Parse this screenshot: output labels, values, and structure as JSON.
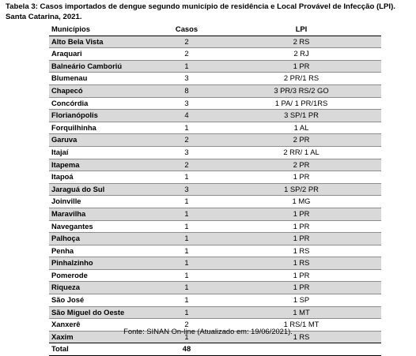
{
  "caption": "Tabela 3: Casos importados de dengue segundo município de residência e Local Provável de Infecção (LPI). Santa Catarina, 2021.",
  "table": {
    "headers": [
      "Municípios",
      "Casos",
      "LPI"
    ],
    "rows": [
      {
        "mun": "Alto Bela Vista",
        "casos": "2",
        "lpi": "2 RS"
      },
      {
        "mun": "Araquari",
        "casos": "2",
        "lpi": "2 RJ"
      },
      {
        "mun": "Balneário Camboriú",
        "casos": "1",
        "lpi": "1 PR"
      },
      {
        "mun": "Blumenau",
        "casos": "3",
        "lpi": "2 PR/1 RS"
      },
      {
        "mun": "Chapecó",
        "casos": "8",
        "lpi": "3 PR/3 RS/2 GO"
      },
      {
        "mun": "Concórdia",
        "casos": "3",
        "lpi": "1 PA/ 1 PR/1RS"
      },
      {
        "mun": "Florianópolis",
        "casos": "4",
        "lpi": "3 SP/1 PR"
      },
      {
        "mun": "Forquilhinha",
        "casos": "1",
        "lpi": "1 AL"
      },
      {
        "mun": "Garuva",
        "casos": "2",
        "lpi": "2 PR"
      },
      {
        "mun": "Itajaí",
        "casos": "3",
        "lpi": "2 RR/ 1 AL"
      },
      {
        "mun": "Itapema",
        "casos": "2",
        "lpi": "2 PR"
      },
      {
        "mun": "Itapoá",
        "casos": "1",
        "lpi": "1 PR"
      },
      {
        "mun": "Jaraguá do Sul",
        "casos": "3",
        "lpi": "1 SP/2 PR"
      },
      {
        "mun": "Joinville",
        "casos": "1",
        "lpi": "1 MG"
      },
      {
        "mun": "Maravilha",
        "casos": "1",
        "lpi": "1 PR"
      },
      {
        "mun": "Navegantes",
        "casos": "1",
        "lpi": "1 PR"
      },
      {
        "mun": "Palhoça",
        "casos": "1",
        "lpi": "1 PR"
      },
      {
        "mun": "Penha",
        "casos": "1",
        "lpi": "1 RS"
      },
      {
        "mun": "Pinhalzinho",
        "casos": "1",
        "lpi": "1 RS"
      },
      {
        "mun": "Pomerode",
        "casos": "1",
        "lpi": "1 PR"
      },
      {
        "mun": "Riqueza",
        "casos": "1",
        "lpi": "1 PR"
      },
      {
        "mun": "São José",
        "casos": "1",
        "lpi": "1 SP"
      },
      {
        "mun": "São Miguel do Oeste",
        "casos": "1",
        "lpi": "1 MT"
      },
      {
        "mun": "Xanxerê",
        "casos": "2",
        "lpi": "1 RS/1 MT"
      },
      {
        "mun": "Xaxim",
        "casos": "1",
        "lpi": "1 RS"
      }
    ],
    "total_label": "Total",
    "total_value": "48"
  },
  "source": "Fonte: SINAN On-line (Atualizado em: 19/06/2021)."
}
